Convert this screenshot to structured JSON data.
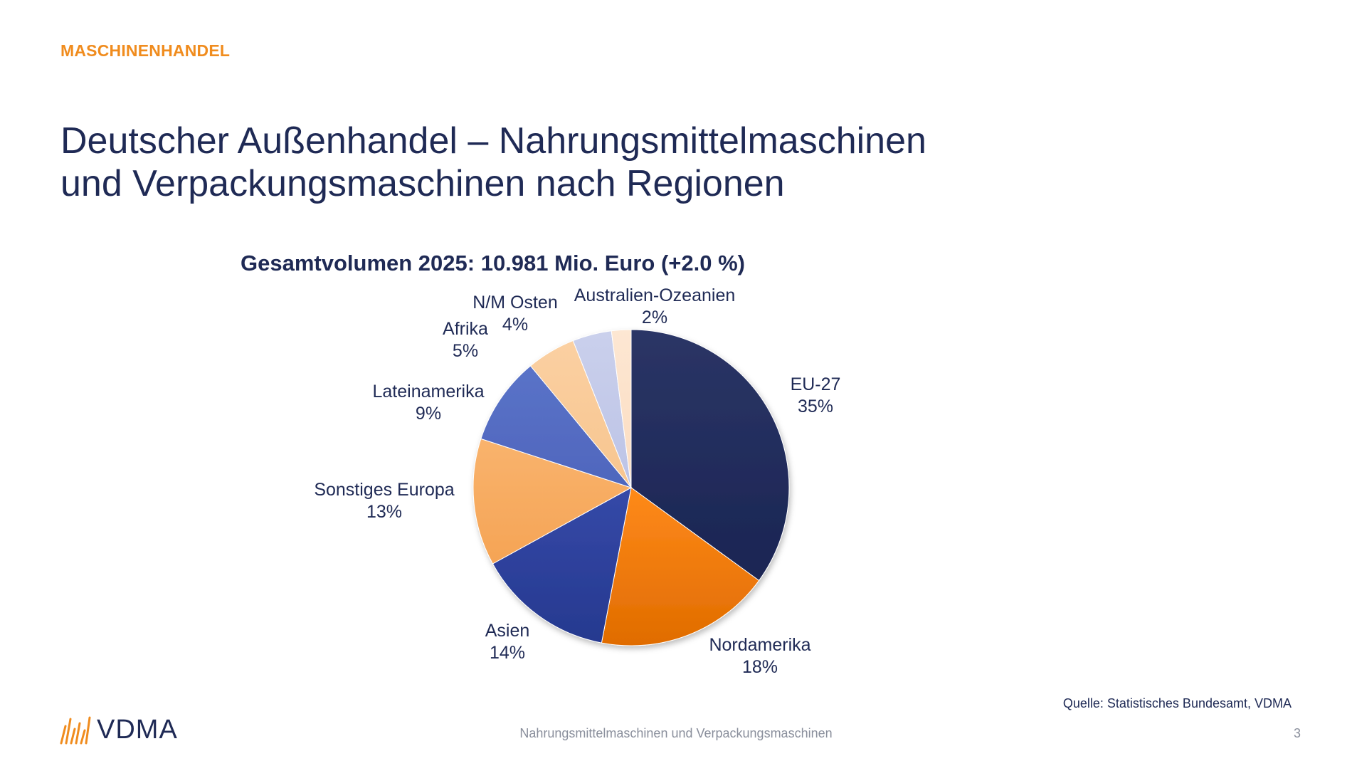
{
  "header": {
    "section_label": "MASCHINENHANDEL",
    "title_line1": "Deutscher Außenhandel – Nahrungsmittelmaschinen",
    "title_line2": "und Verpackungsmaschinen nach Regionen"
  },
  "chart_data": {
    "type": "pie",
    "title": "Gesamtvolumen 2025: 10.981 Mio. Euro (+2.0 %)",
    "slices": [
      {
        "label": "EU-27",
        "value": 35,
        "display": "35%",
        "color": "#2b3566",
        "color2": "#1a2553"
      },
      {
        "label": "Nordamerika",
        "value": 18,
        "display": "18%",
        "color": "#ff8a1a",
        "color2": "#e06c00"
      },
      {
        "label": "Asien",
        "value": 14,
        "display": "14%",
        "color": "#3549a8",
        "color2": "#26398f"
      },
      {
        "label": "Sonstiges Europa",
        "value": 13,
        "display": "13%",
        "color": "#f9b36d",
        "color2": "#f5a455"
      },
      {
        "label": "Lateinamerika",
        "value": 9,
        "display": "9%",
        "color": "#5a73c8",
        "color2": "#4f66bd"
      },
      {
        "label": "Afrika",
        "value": 5,
        "display": "5%",
        "color": "#fbd0a2",
        "color2": "#f7c58f"
      },
      {
        "label": "N/M Osten",
        "value": 4,
        "display": "4%",
        "color": "#cad0ec",
        "color2": "#bcc3e6"
      },
      {
        "label": "Australien-Ozeanien",
        "value": 2,
        "display": "2%",
        "color": "#fde7d3",
        "color2": "#fbdcc0"
      }
    ]
  },
  "footer": {
    "source": "Quelle: Statistisches Bundesamt, VDMA",
    "center_text": "Nahrungsmittelmaschinen und Verpackungsmaschinen",
    "page_number": "3",
    "logo_text": "VDMA",
    "logo_color": "#f08c1e"
  }
}
